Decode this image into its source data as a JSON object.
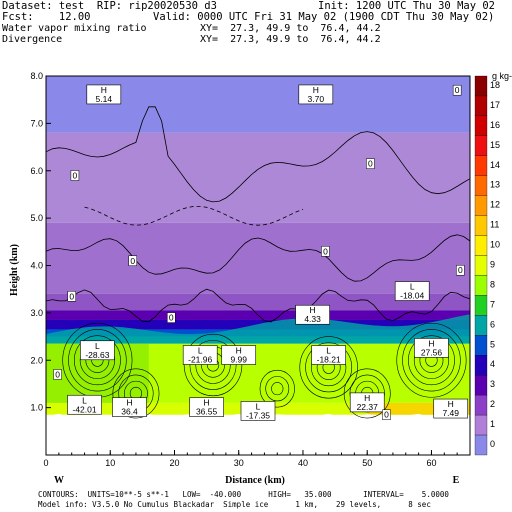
{
  "header": {
    "dataset": "Dataset: test  RIP: rip20020530 d3",
    "init": "Init: 1200 UTC Thu 30 May 02",
    "fcst": "Fcst:    12.00",
    "valid": "Valid: 0000 UTC Fri 31 May 02 (1900 CDT Thu 30 May 02)",
    "field1": "Water vapor mixing ratio",
    "xy1": "XY=  27.3, 49.9 to  76.4, 44.2",
    "field2": "Divergence",
    "xy2": "XY=  27.3, 49.9 to  76.4, 44.2"
  },
  "chart_data": {
    "type": "heatmap",
    "xlabel": "Distance (km)",
    "ylabel": "Height (km)",
    "xlim": [
      0,
      66
    ],
    "ylim": [
      0,
      8
    ],
    "x_ticks": [
      "0",
      "10",
      "20",
      "30",
      "40",
      "50",
      "60"
    ],
    "y_ticks": [
      "1.0",
      "2.0",
      "3.0",
      "4.0",
      "5.0",
      "6.0",
      "7.0",
      "8.0"
    ],
    "left_end": "W",
    "right_end": "E",
    "colorbar_unit": "g kg-1",
    "colorbar": [
      {
        "v": "18",
        "c": "#8a0000"
      },
      {
        "v": "17",
        "c": "#b00000"
      },
      {
        "v": "16",
        "c": "#d10000"
      },
      {
        "v": "15",
        "c": "#ee1010"
      },
      {
        "v": "14",
        "c": "#ff3a00"
      },
      {
        "v": "13",
        "c": "#ff6a00"
      },
      {
        "v": "12",
        "c": "#ff9a00"
      },
      {
        "v": "11",
        "c": "#ffc800"
      },
      {
        "v": "10",
        "c": "#ffee00"
      },
      {
        "v": "9",
        "c": "#e4ff00"
      },
      {
        "v": "8",
        "c": "#9cff00"
      },
      {
        "v": "7",
        "c": "#22d022"
      },
      {
        "v": "6",
        "c": "#00a6a6"
      },
      {
        "v": "5",
        "c": "#0050d0"
      },
      {
        "v": "4",
        "c": "#2400b8"
      },
      {
        "v": "3",
        "c": "#5a00b0"
      },
      {
        "v": "2",
        "c": "#8c40c8"
      },
      {
        "v": "1",
        "c": "#b080d8"
      },
      {
        "v": "0",
        "c": "#8a88e8"
      }
    ],
    "bands": [
      {
        "y0": 6.8,
        "y1": 8.0,
        "c": "#8a88e8"
      },
      {
        "y0": 4.9,
        "y1": 6.8,
        "c": "#ad88d6"
      },
      {
        "y0": 3.4,
        "y1": 4.9,
        "c": "#a070cf"
      },
      {
        "y0": 3.05,
        "y1": 3.4,
        "c": "#8f55c4"
      },
      {
        "y0": 2.85,
        "y1": 3.05,
        "c": "#5a00b0"
      },
      {
        "y0": 2.65,
        "y1": 2.85,
        "c": "#2400b8"
      },
      {
        "y0": 2.5,
        "y1": 2.65,
        "c": "#0050d0"
      },
      {
        "y0": 2.35,
        "y1": 2.5,
        "c": "#00a6a6"
      },
      {
        "y0": 1.1,
        "y1": 2.35,
        "c": "#b8ff00"
      },
      {
        "y0": 0.85,
        "y1": 1.1,
        "c": "#d8ff00"
      }
    ],
    "highs_lows": [
      {
        "t": "H",
        "v": "5.14",
        "x": 9,
        "y": 7.6
      },
      {
        "t": "H",
        "v": "3.70",
        "x": 42,
        "y": 7.6
      },
      {
        "t": "L",
        "v": "-18.04",
        "x": 57,
        "y": 3.45
      },
      {
        "t": "H",
        "v": "4.33",
        "x": 41.5,
        "y": 2.95
      },
      {
        "t": "L",
        "v": "-28.63",
        "x": 8,
        "y": 2.2
      },
      {
        "t": "L",
        "v": "-21.96",
        "x": 24,
        "y": 2.1
      },
      {
        "t": "H",
        "v": "9.99",
        "x": 30,
        "y": 2.1
      },
      {
        "t": "L",
        "v": "-18.21",
        "x": 44,
        "y": 2.1
      },
      {
        "t": "H",
        "v": "27.56",
        "x": 60,
        "y": 2.25
      },
      {
        "t": "L",
        "v": "-42.01",
        "x": 6,
        "y": 1.05
      },
      {
        "t": "H",
        "v": "36.4",
        "x": 13,
        "y": 1.0
      },
      {
        "t": "H",
        "v": "36.55",
        "x": 25,
        "y": 1.0
      },
      {
        "t": "L",
        "v": "-17.35",
        "x": 33,
        "y": 0.92
      },
      {
        "t": "H",
        "v": "22.37",
        "x": 50,
        "y": 1.1
      },
      {
        "t": "H",
        "v": "7.49",
        "x": 63,
        "y": 0.97
      }
    ],
    "zero_labels": [
      {
        "v": "0",
        "x": 64,
        "y": 7.7
      },
      {
        "v": "0",
        "x": 50.5,
        "y": 6.15
      },
      {
        "v": "0",
        "x": 4.5,
        "y": 5.9
      },
      {
        "v": "0",
        "x": 43.5,
        "y": 4.3
      },
      {
        "v": "0",
        "x": 13.5,
        "y": 4.1
      },
      {
        "v": "0",
        "x": 64.5,
        "y": 3.9
      },
      {
        "v": "0",
        "x": 4,
        "y": 3.35
      },
      {
        "v": "0",
        "x": 19.5,
        "y": 2.9
      },
      {
        "v": "0",
        "x": 1.8,
        "y": 1.7
      },
      {
        "v": "0",
        "x": 53,
        "y": 0.85
      }
    ],
    "footer_line1": "CONTOURS:  UNITS=10**-5 s**-1   LOW=  -40.000      HIGH=   35.000       INTERVAL=    5.0000",
    "footer_line2": "Model info: V3.5.0 No Cumulus Blackadar  Simple ice      1 km,    29 levels,      8 sec"
  }
}
